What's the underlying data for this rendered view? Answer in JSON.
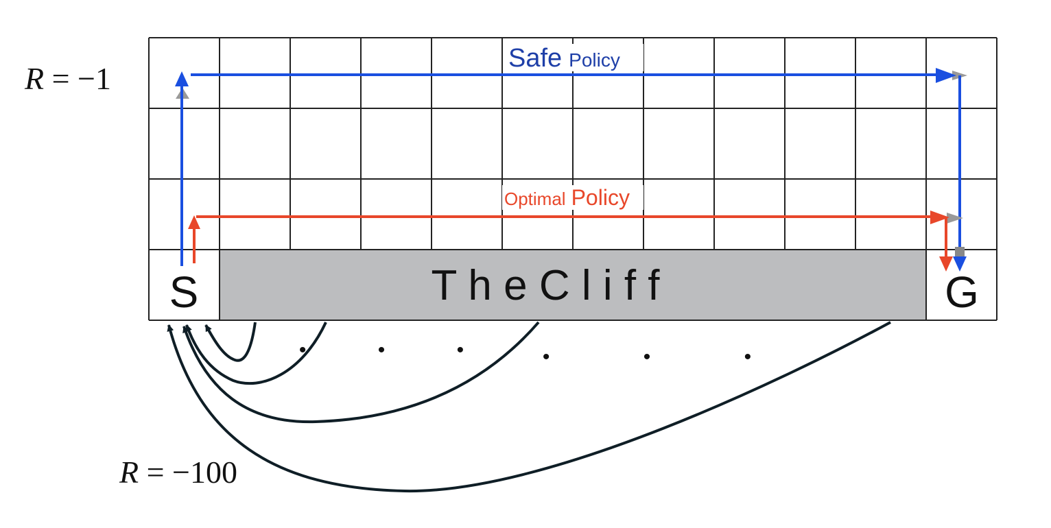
{
  "labels": {
    "reward_step": "R = −1",
    "reward_step_var": "R",
    "reward_step_rest": " = −1",
    "reward_cliff": "R = −100",
    "reward_cliff_var": "R",
    "reward_cliff_rest": " = −100",
    "safe_word": "Safe",
    "safe_policy_word": "Policy",
    "optimal_word": "Optimal",
    "optimal_policy_word": "Policy",
    "cliff": "T h e   C l i f f",
    "start": "S",
    "goal": "G",
    "ellipsis_left": "• • •",
    "ellipsis_right": "• • •"
  },
  "grid": {
    "rows": 4,
    "cols": 12
  },
  "colors": {
    "safe_path": "#1a4fe0",
    "safe_text": "#1e3fa8",
    "optimal_path": "#e8472a",
    "cliff_fill": "#bcbdbf",
    "grid_line": "#222222",
    "return_arrows": "#0f1e26",
    "arrow_shadow": "#999999"
  }
}
